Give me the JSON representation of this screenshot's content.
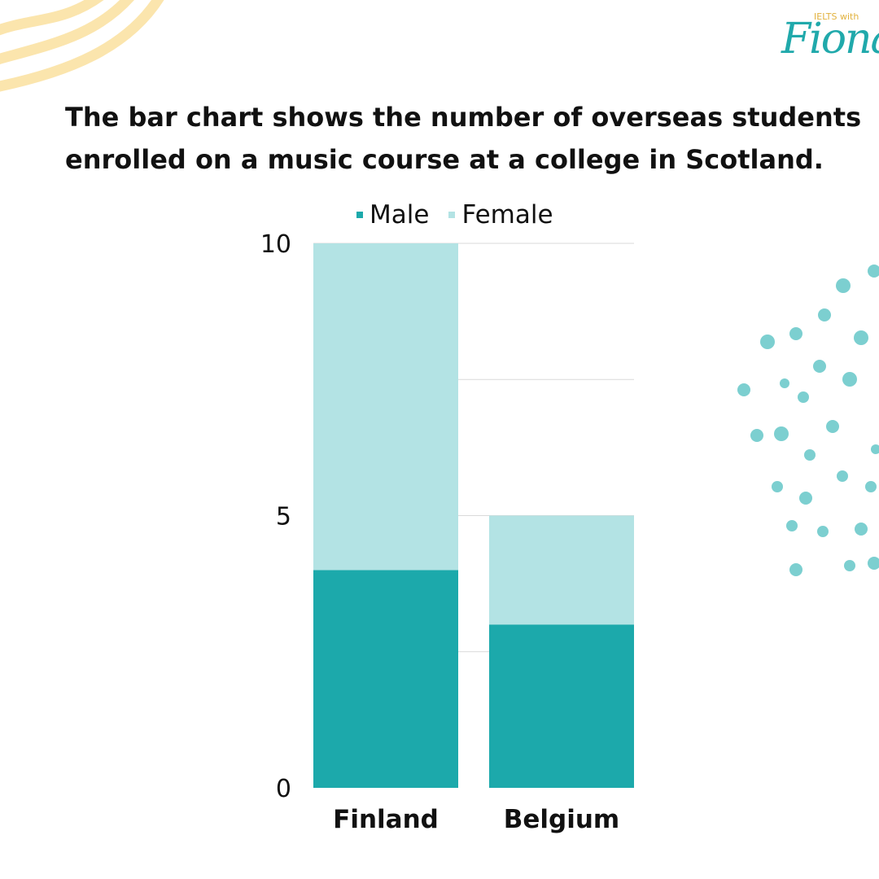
{
  "logo": {
    "small": "IELTS with",
    "big": "Fiona"
  },
  "colors": {
    "male": "#1ca9ab",
    "female": "#b3e3e4",
    "accent_dots": "#7ccfd0",
    "accent_waves": "#fbe5ad",
    "grid": "#d9d9d9"
  },
  "chart_data": {
    "type": "bar",
    "stacked": true,
    "title": "The bar chart shows the number of overseas students enrolled on a music course at a college in Scotland.",
    "categories": [
      "Finland",
      "Belgium"
    ],
    "series": [
      {
        "name": "Male",
        "values": [
          4,
          3
        ]
      },
      {
        "name": "Female",
        "values": [
          6,
          2
        ]
      }
    ],
    "ylim": [
      0,
      10
    ],
    "yticks": [
      0,
      5,
      10
    ],
    "grid": true,
    "legend": "top"
  }
}
